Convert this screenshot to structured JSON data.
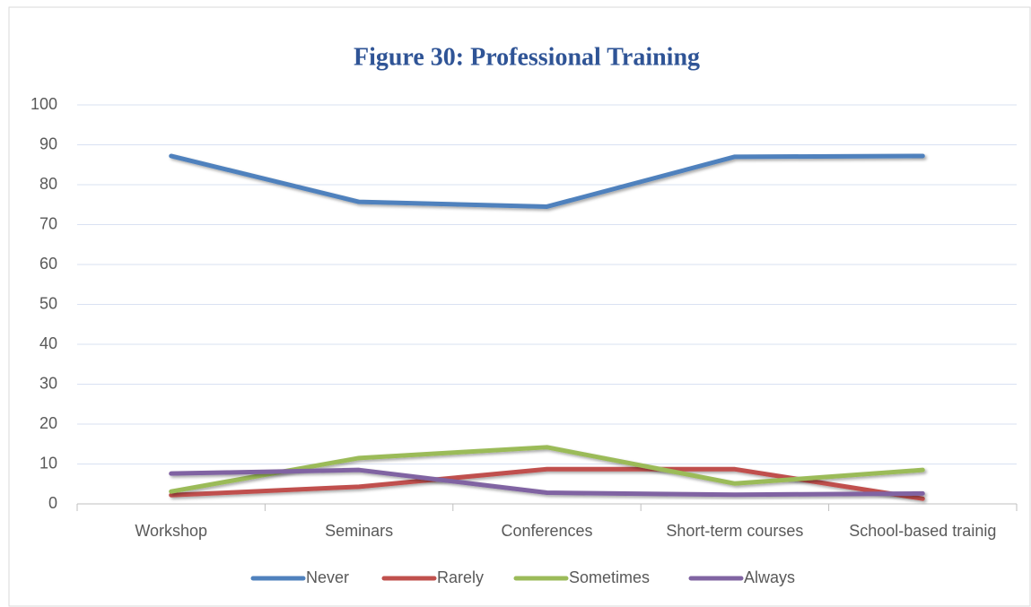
{
  "chart_data": {
    "type": "line",
    "title": "Figure 30: Professional Training",
    "categories": [
      "Workshop",
      "Seminars",
      "Conferences",
      "Short-term courses",
      "School-based trainig"
    ],
    "series": [
      {
        "name": "Never",
        "color": "#4f81bd",
        "values": [
          87.2,
          75.7,
          74.5,
          87,
          87.2
        ]
      },
      {
        "name": "Rarely",
        "color": "#c0504d",
        "values": [
          2.2,
          4.3,
          8.7,
          8.7,
          1.3
        ]
      },
      {
        "name": "Sometimes",
        "color": "#9bbb59",
        "values": [
          3.1,
          11.5,
          14.2,
          5.1,
          8.5
        ]
      },
      {
        "name": "Always",
        "color": "#8064a2",
        "values": [
          7.6,
          8.5,
          2.8,
          2.3,
          2.6
        ]
      }
    ],
    "ylim": [
      0,
      100
    ],
    "yticks": [
      0,
      10,
      20,
      30,
      40,
      50,
      60,
      70,
      80,
      90,
      100
    ],
    "grid": true,
    "legend": "bottom"
  }
}
